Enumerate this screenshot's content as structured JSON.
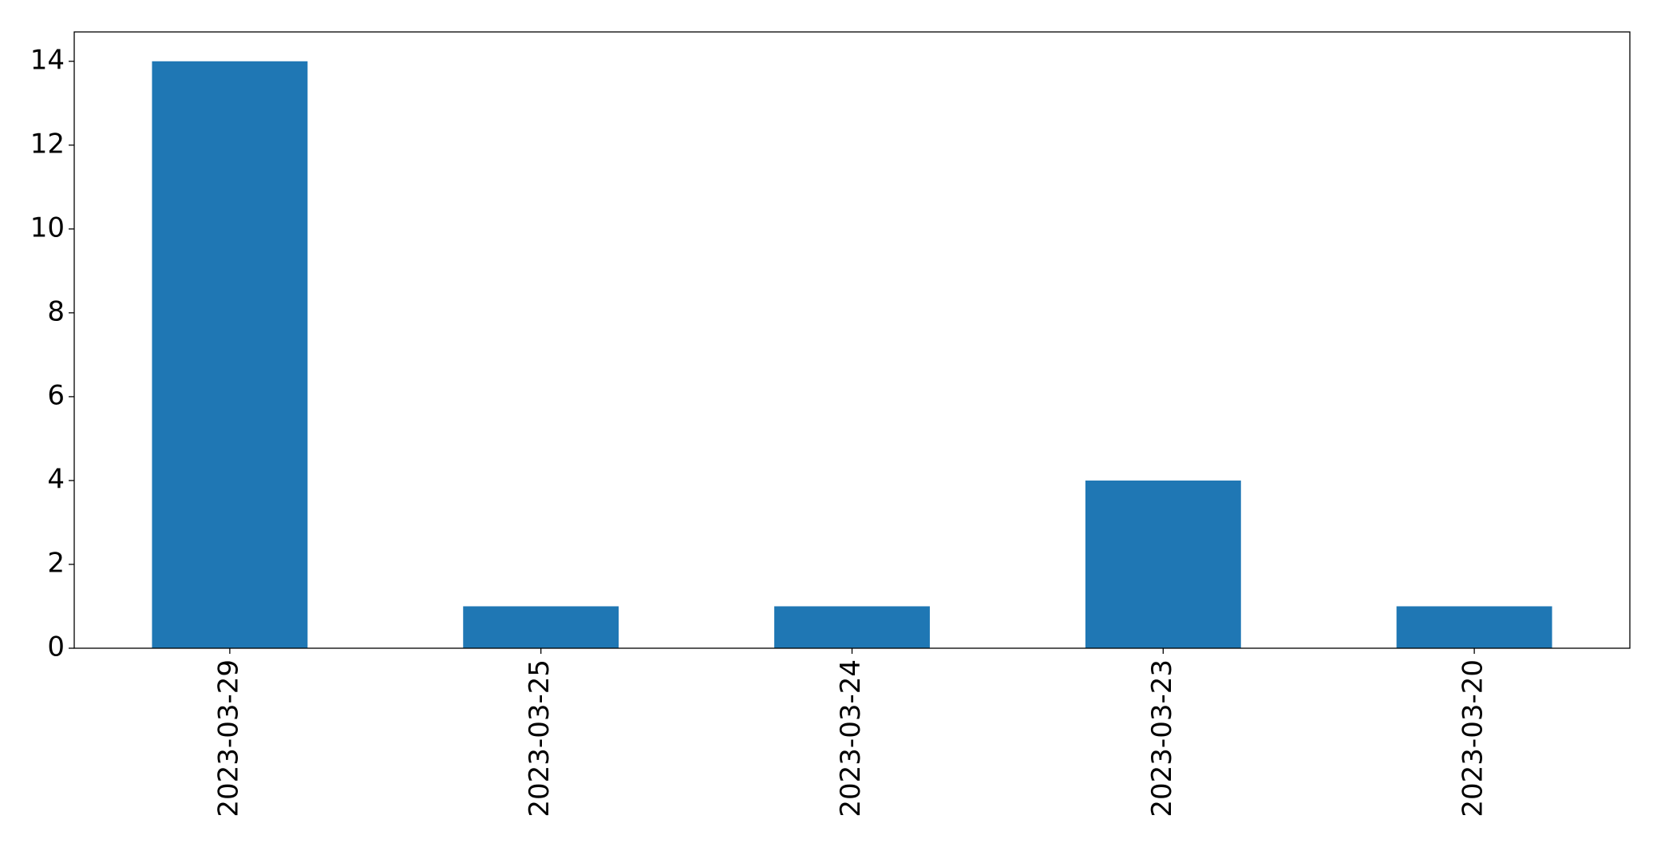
{
  "chart_data": {
    "type": "bar",
    "categories": [
      "2023-03-29",
      "2023-03-25",
      "2023-03-24",
      "2023-03-23",
      "2023-03-20"
    ],
    "values": [
      14,
      1,
      1,
      4,
      1
    ],
    "color": "#1f77b4",
    "ylim": [
      0,
      14.7
    ],
    "yticks": [
      0,
      2,
      4,
      6,
      8,
      10,
      12,
      14
    ],
    "grid": false
  }
}
